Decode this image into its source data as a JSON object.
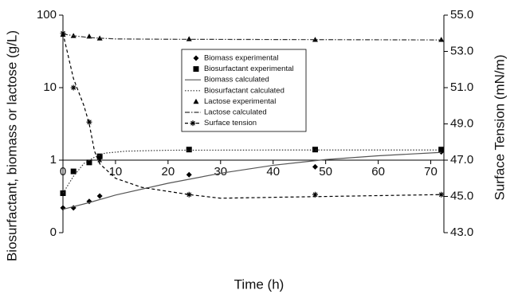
{
  "chart_data": {
    "type": "scatter",
    "xlabel": "Time (h)",
    "ylabel": "Biosurfactant, biomass or lactose (g/L)",
    "y2label": "Surface Tension (mN/m)",
    "xlim": [
      0,
      72.5
    ],
    "xticks": [
      0,
      10,
      20,
      30,
      40,
      50,
      60,
      70
    ],
    "ylim": [
      0.1,
      100
    ],
    "yscale": "log",
    "yticks": [
      {
        "value": 0.1,
        "label": "0"
      },
      1,
      10,
      100
    ],
    "y2lim": [
      43,
      55
    ],
    "y2ticks": [
      {
        "value": 43,
        "label": "43.0"
      },
      {
        "value": 45,
        "label": "45.0"
      },
      {
        "value": 47,
        "label": "47.0"
      },
      {
        "value": 49,
        "label": "49.0"
      },
      {
        "value": 51,
        "label": "51.0"
      },
      {
        "value": 53,
        "label": "53.0"
      },
      {
        "value": 55,
        "label": "55.0"
      }
    ],
    "xaxis_crosses": 1,
    "series": [
      {
        "name": "Biomass experimental",
        "marker": "diamond",
        "color": "#000000",
        "x": [
          0,
          2,
          5,
          7,
          24,
          48,
          72
        ],
        "values": [
          0.22,
          0.22,
          0.27,
          0.32,
          0.63,
          0.81,
          1.3
        ]
      },
      {
        "name": "Biosurfactant experimental",
        "marker": "square",
        "color": "#000000",
        "x": [
          0,
          2,
          5,
          7,
          24,
          48,
          72
        ],
        "values": [
          0.35,
          0.7,
          0.93,
          1.13,
          1.4,
          1.4,
          1.4
        ]
      },
      {
        "name": "Biomass calculated",
        "line": "solid",
        "color": "#555555",
        "x": [
          0,
          5,
          10,
          20,
          30,
          40,
          50,
          60,
          72
        ],
        "values": [
          0.21,
          0.26,
          0.33,
          0.48,
          0.66,
          0.85,
          1.02,
          1.15,
          1.28
        ]
      },
      {
        "name": "Biosurfactant calculated",
        "line": "dotted",
        "color": "#333333",
        "x": [
          0,
          2,
          4,
          6,
          8,
          12,
          20,
          40,
          72
        ],
        "values": [
          0.35,
          0.6,
          0.9,
          1.1,
          1.25,
          1.33,
          1.37,
          1.38,
          1.38
        ]
      },
      {
        "name": "Lactose experimental",
        "marker": "triangle",
        "color": "#000000",
        "x": [
          0,
          2,
          5,
          7,
          24,
          48,
          72
        ],
        "values": [
          54,
          52,
          51,
          48,
          47,
          46,
          46
        ]
      },
      {
        "name": "Lactose calculated",
        "line": "dashdot",
        "color": "#333333",
        "x": [
          0,
          2,
          5,
          10,
          20,
          72
        ],
        "values": [
          55,
          52,
          49,
          47,
          46.5,
          45.5
        ]
      },
      {
        "name": "Surface tension",
        "marker": "star",
        "line": "dashed",
        "color": "#000000",
        "axis": "y2",
        "x": [
          0,
          2,
          5,
          7,
          24,
          48,
          72
        ],
        "values": [
          54.0,
          51.0,
          49.1,
          47.0,
          45.1,
          45.1,
          45.1
        ],
        "curve": {
          "x": [
            0,
            2,
            4,
            5,
            6,
            7,
            10,
            15,
            24,
            30,
            40,
            72
          ],
          "values": [
            54,
            51.5,
            50,
            49,
            47.5,
            46.8,
            46,
            45.5,
            45.1,
            44.9,
            44.95,
            45.1
          ]
        }
      }
    ]
  }
}
